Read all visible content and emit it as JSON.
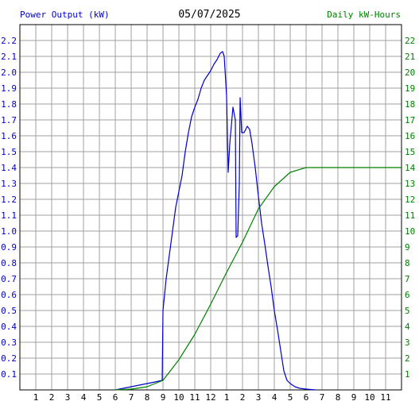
{
  "chart_data": {
    "type": "line",
    "title": "05/07/2025",
    "y_left_label": "Power Output (kW)",
    "y_right_label": "Daily kW-Hours",
    "x_ticks": [
      "1",
      "2",
      "3",
      "4",
      "5",
      "6",
      "7",
      "8",
      "9",
      "10",
      "11",
      "12",
      "1",
      "2",
      "3",
      "4",
      "5",
      "6",
      "7",
      "8",
      "9",
      "10",
      "11"
    ],
    "y_left_ticks": [
      "0.1",
      "0.2",
      "0.3",
      "0.4",
      "0.5",
      "0.6",
      "0.7",
      "0.8",
      "0.9",
      "1.0",
      "1.1",
      "1.2",
      "1.3",
      "1.4",
      "1.5",
      "1.6",
      "1.7",
      "1.8",
      "1.9",
      "2.0",
      "2.1",
      "2.2"
    ],
    "y_right_ticks": [
      "1",
      "2",
      "3",
      "4",
      "5",
      "6",
      "7",
      "8",
      "9",
      "10",
      "11",
      "12",
      "13",
      "14",
      "15",
      "16",
      "17",
      "18",
      "19",
      "20",
      "21",
      "22"
    ],
    "xlim": [
      0,
      24
    ],
    "ylim_left": [
      0,
      2.3
    ],
    "ylim_right": [
      0,
      23
    ],
    "grid": true,
    "colors": {
      "power": "#0000cc",
      "energy": "#008000",
      "grid": "#a0a0a0",
      "axis": "#000000"
    },
    "series": [
      {
        "name": "Power Output (kW)",
        "axis": "left",
        "points": [
          [
            6.0,
            0.0
          ],
          [
            6.5,
            0.01
          ],
          [
            7.0,
            0.02
          ],
          [
            7.5,
            0.03
          ],
          [
            8.0,
            0.04
          ],
          [
            8.5,
            0.05
          ],
          [
            8.95,
            0.06
          ],
          [
            9.0,
            0.5
          ],
          [
            9.2,
            0.7
          ],
          [
            9.4,
            0.85
          ],
          [
            9.6,
            1.0
          ],
          [
            9.8,
            1.15
          ],
          [
            10.0,
            1.25
          ],
          [
            10.2,
            1.35
          ],
          [
            10.4,
            1.5
          ],
          [
            10.6,
            1.62
          ],
          [
            10.8,
            1.72
          ],
          [
            11.0,
            1.78
          ],
          [
            11.2,
            1.83
          ],
          [
            11.4,
            1.9
          ],
          [
            11.6,
            1.95
          ],
          [
            11.8,
            1.98
          ],
          [
            12.0,
            2.01
          ],
          [
            12.2,
            2.05
          ],
          [
            12.4,
            2.08
          ],
          [
            12.6,
            2.12
          ],
          [
            12.75,
            2.13
          ],
          [
            12.85,
            2.1
          ],
          [
            13.0,
            1.85
          ],
          [
            13.1,
            1.37
          ],
          [
            13.2,
            1.55
          ],
          [
            13.4,
            1.78
          ],
          [
            13.55,
            1.7
          ],
          [
            13.6,
            0.96
          ],
          [
            13.7,
            0.97
          ],
          [
            13.8,
            1.3
          ],
          [
            13.85,
            1.84
          ],
          [
            13.95,
            1.62
          ],
          [
            14.1,
            1.62
          ],
          [
            14.3,
            1.66
          ],
          [
            14.45,
            1.64
          ],
          [
            14.6,
            1.55
          ],
          [
            14.8,
            1.4
          ],
          [
            15.0,
            1.22
          ],
          [
            15.2,
            1.05
          ],
          [
            15.4,
            0.92
          ],
          [
            15.6,
            0.78
          ],
          [
            15.8,
            0.65
          ],
          [
            16.0,
            0.5
          ],
          [
            16.2,
            0.38
          ],
          [
            16.4,
            0.25
          ],
          [
            16.6,
            0.12
          ],
          [
            16.8,
            0.06
          ],
          [
            17.0,
            0.04
          ],
          [
            17.3,
            0.02
          ],
          [
            17.6,
            0.01
          ],
          [
            18.0,
            0.005
          ],
          [
            18.6,
            0.0
          ]
        ]
      },
      {
        "name": "Daily kW-Hours",
        "axis": "right",
        "points": [
          [
            6.0,
            0.0
          ],
          [
            7.0,
            0.05
          ],
          [
            8.0,
            0.2
          ],
          [
            9.0,
            0.6
          ],
          [
            10.0,
            1.9
          ],
          [
            11.0,
            3.5
          ],
          [
            12.0,
            5.4
          ],
          [
            13.0,
            7.4
          ],
          [
            14.0,
            9.3
          ],
          [
            15.0,
            11.4
          ],
          [
            16.0,
            12.8
          ],
          [
            17.0,
            13.7
          ],
          [
            18.0,
            14.0
          ],
          [
            24.0,
            14.0
          ]
        ]
      }
    ]
  }
}
